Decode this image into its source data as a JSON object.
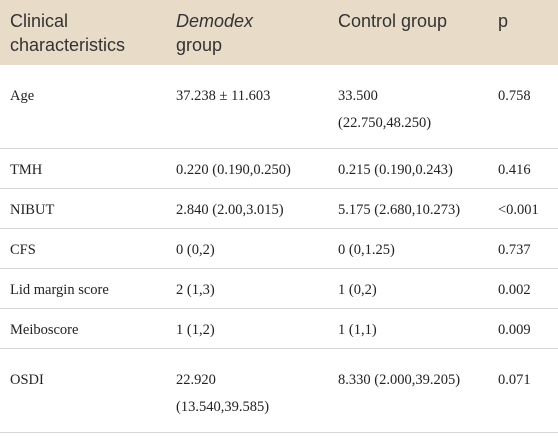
{
  "table": {
    "header": [
      "Clinical characteristics",
      {
        "em": "Demodex",
        "text": "group"
      },
      "Control group",
      "p"
    ],
    "rows": [
      [
        "Age",
        "37.238 ± 11.603",
        [
          "33.500",
          "(22.750,48.250)"
        ],
        "0.758"
      ],
      [
        "TMH",
        "0.220 (0.190,0.250)",
        "0.215 (0.190,0.243)",
        "0.416"
      ],
      [
        "NIBUT",
        "2.840 (2.00,3.015)",
        "5.175 (2.680,10.273)",
        "<0.001"
      ],
      [
        "CFS",
        "0 (0,2)",
        "0 (0,1.25)",
        "0.737"
      ],
      [
        "Lid margin score",
        "2 (1,3)",
        "1 (0,2)",
        "0.002"
      ],
      [
        "Meiboscore",
        "1 (1,2)",
        "1 (1,1)",
        "0.009"
      ],
      [
        "OSDI",
        [
          "22.920",
          "(13.540,39.585)"
        ],
        "8.330 (2.000,39.205)",
        "0.071"
      ]
    ]
  }
}
